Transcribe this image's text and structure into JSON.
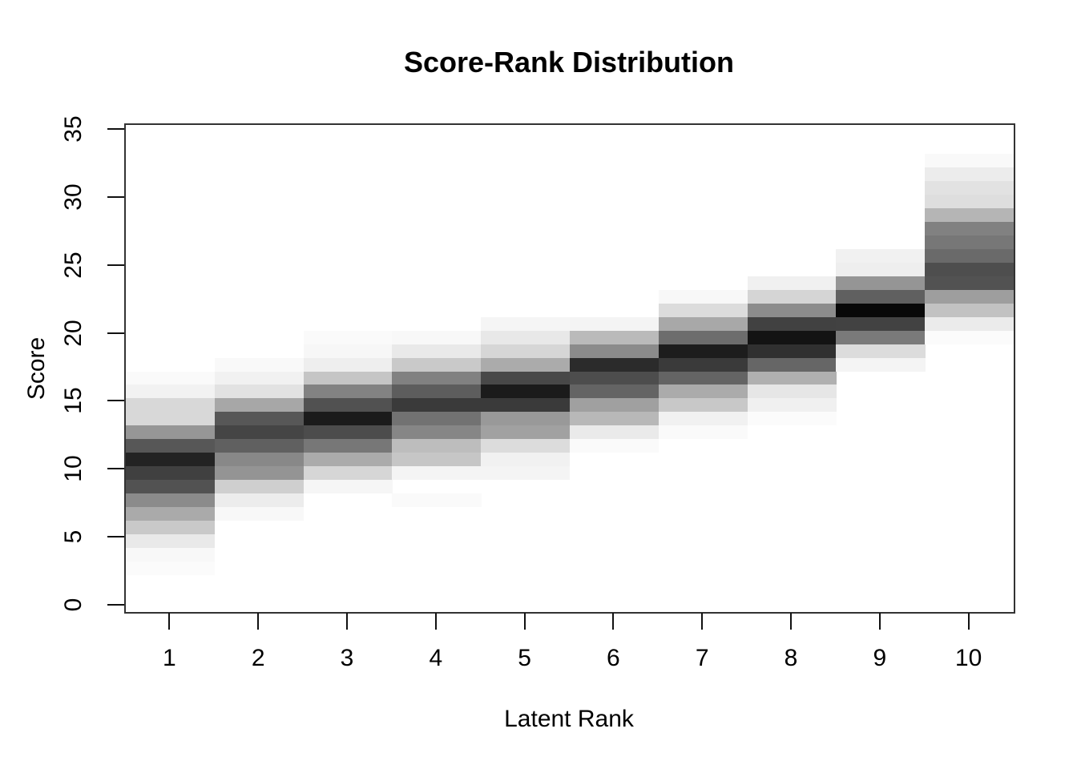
{
  "chart_data": {
    "type": "heatmap",
    "title": "Score-Rank Distribution",
    "xlabel": "Latent Rank",
    "ylabel": "Score",
    "x_ticks": [
      "1",
      "2",
      "3",
      "4",
      "5",
      "6",
      "7",
      "8",
      "9",
      "10"
    ],
    "y_ticks": [
      "0",
      "5",
      "10",
      "15",
      "20",
      "25",
      "30",
      "35"
    ],
    "x_tick_values": [
      1,
      2,
      3,
      4,
      5,
      6,
      7,
      8,
      9,
      10
    ],
    "y_tick_values": [
      0,
      5,
      10,
      15,
      20,
      25,
      30,
      35
    ],
    "xlim": [
      0.5,
      10.5
    ],
    "ylim": [
      -0.5,
      35.5
    ],
    "grid": false,
    "legend_position": "none",
    "colormap": "grayscale: white = low density, black = high density",
    "cell_size": {
      "width_ranks": 1,
      "height_scores": 1
    },
    "columns": [
      {
        "rank": 1,
        "cells": [
          {
            "score": 17,
            "color": "#fafafa"
          },
          {
            "score": 16,
            "color": "#f2f2f2"
          },
          {
            "score": 15,
            "color": "#d8d8d8"
          },
          {
            "score": 14,
            "color": "#d8d8d8"
          },
          {
            "score": 13,
            "color": "#969696"
          },
          {
            "score": 12,
            "color": "#575757"
          },
          {
            "score": 11,
            "color": "#232323"
          },
          {
            "score": 10,
            "color": "#404040"
          },
          {
            "score": 9,
            "color": "#525252"
          },
          {
            "score": 8,
            "color": "#8b8b8b"
          },
          {
            "score": 7,
            "color": "#aaaaaa"
          },
          {
            "score": 6,
            "color": "#c9c9c9"
          },
          {
            "score": 5,
            "color": "#e9e9e9"
          },
          {
            "score": 4,
            "color": "#f8f8f8"
          },
          {
            "score": 3,
            "color": "#fbfbfb"
          }
        ]
      },
      {
        "rank": 2,
        "cells": [
          {
            "score": 18,
            "color": "#f9f9f9"
          },
          {
            "score": 17,
            "color": "#f1f1f1"
          },
          {
            "score": 16,
            "color": "#e2e2e2"
          },
          {
            "score": 15,
            "color": "#a7a7a7"
          },
          {
            "score": 14,
            "color": "#575757"
          },
          {
            "score": 13,
            "color": "#454545"
          },
          {
            "score": 12,
            "color": "#606060"
          },
          {
            "score": 11,
            "color": "#888888"
          },
          {
            "score": 10,
            "color": "#949494"
          },
          {
            "score": 9,
            "color": "#cfcfcf"
          },
          {
            "score": 8,
            "color": "#ececec"
          },
          {
            "score": 7,
            "color": "#f8f8f8"
          }
        ]
      },
      {
        "rank": 3,
        "cells": [
          {
            "score": 20,
            "color": "#fafafa"
          },
          {
            "score": 19,
            "color": "#f7f7f7"
          },
          {
            "score": 18,
            "color": "#eeeeee"
          },
          {
            "score": 17,
            "color": "#c5c5c5"
          },
          {
            "score": 16,
            "color": "#828282"
          },
          {
            "score": 15,
            "color": "#515151"
          },
          {
            "score": 14,
            "color": "#1b1b1b"
          },
          {
            "score": 13,
            "color": "#4c4c4c"
          },
          {
            "score": 12,
            "color": "#777777"
          },
          {
            "score": 11,
            "color": "#ababab"
          },
          {
            "score": 10,
            "color": "#d6d6d6"
          },
          {
            "score": 9,
            "color": "#f6f6f6"
          }
        ]
      },
      {
        "rank": 4,
        "cells": [
          {
            "score": 20,
            "color": "#f8f8f8"
          },
          {
            "score": 19,
            "color": "#e9e9e9"
          },
          {
            "score": 18,
            "color": "#c9c9c9"
          },
          {
            "score": 17,
            "color": "#818181"
          },
          {
            "score": 16,
            "color": "#5d5d5d"
          },
          {
            "score": 15,
            "color": "#3a3a3a"
          },
          {
            "score": 14,
            "color": "#727272"
          },
          {
            "score": 13,
            "color": "#868686"
          },
          {
            "score": 12,
            "color": "#bdbdbd"
          },
          {
            "score": 11,
            "color": "#c6c6c6"
          },
          {
            "score": 10,
            "color": "#f4f4f4"
          },
          {
            "score": 8,
            "color": "#fafafa"
          }
        ]
      },
      {
        "rank": 5,
        "cells": [
          {
            "score": 21,
            "color": "#f5f5f5"
          },
          {
            "score": 20,
            "color": "#e8e8e8"
          },
          {
            "score": 19,
            "color": "#d6d6d6"
          },
          {
            "score": 18,
            "color": "#ababab"
          },
          {
            "score": 17,
            "color": "#484848"
          },
          {
            "score": 16,
            "color": "#1b1b1b"
          },
          {
            "score": 15,
            "color": "#3a3a3a"
          },
          {
            "score": 14,
            "color": "#999999"
          },
          {
            "score": 13,
            "color": "#a1a1a1"
          },
          {
            "score": 12,
            "color": "#dcdcdc"
          },
          {
            "score": 11,
            "color": "#f1f1f1"
          },
          {
            "score": 10,
            "color": "#f4f4f4"
          }
        ]
      },
      {
        "rank": 6,
        "cells": [
          {
            "score": 21,
            "color": "#f4f4f4"
          },
          {
            "score": 20,
            "color": "#bababa"
          },
          {
            "score": 19,
            "color": "#8b8b8b"
          },
          {
            "score": 18,
            "color": "#2b2b2b"
          },
          {
            "score": 17,
            "color": "#4d4d4d"
          },
          {
            "score": 16,
            "color": "#646464"
          },
          {
            "score": 15,
            "color": "#a0a0a0"
          },
          {
            "score": 14,
            "color": "#b8b8b8"
          },
          {
            "score": 13,
            "color": "#eaeaea"
          },
          {
            "score": 12,
            "color": "#fafafa"
          }
        ]
      },
      {
        "rank": 7,
        "cells": [
          {
            "score": 23,
            "color": "#f8f8f8"
          },
          {
            "score": 22,
            "color": "#dcdcdc"
          },
          {
            "score": 21,
            "color": "#a8a8a8"
          },
          {
            "score": 20,
            "color": "#6d6d6d"
          },
          {
            "score": 19,
            "color": "#1d1d1d"
          },
          {
            "score": 18,
            "color": "#3a3a3a"
          },
          {
            "score": 17,
            "color": "#646464"
          },
          {
            "score": 16,
            "color": "#ababab"
          },
          {
            "score": 15,
            "color": "#c8c8c8"
          },
          {
            "score": 14,
            "color": "#f1f1f1"
          },
          {
            "score": 13,
            "color": "#fafafa"
          }
        ]
      },
      {
        "rank": 8,
        "cells": [
          {
            "score": 24,
            "color": "#f0f0f0"
          },
          {
            "score": 23,
            "color": "#d5d5d5"
          },
          {
            "score": 22,
            "color": "#8c8c8c"
          },
          {
            "score": 21,
            "color": "#414141"
          },
          {
            "score": 20,
            "color": "#131313"
          },
          {
            "score": 19,
            "color": "#303030"
          },
          {
            "score": 18,
            "color": "#666666"
          },
          {
            "score": 17,
            "color": "#b0b0b0"
          },
          {
            "score": 16,
            "color": "#e6e6e6"
          },
          {
            "score": 15,
            "color": "#f0f0f0"
          },
          {
            "score": 14,
            "color": "#fbfbfb"
          }
        ]
      },
      {
        "rank": 9,
        "cells": [
          {
            "score": 26,
            "color": "#f1f1f1"
          },
          {
            "score": 25,
            "color": "#eeeeee"
          },
          {
            "score": 24,
            "color": "#959595"
          },
          {
            "score": 23,
            "color": "#606060"
          },
          {
            "score": 22,
            "color": "#080808"
          },
          {
            "score": 21,
            "color": "#424242"
          },
          {
            "score": 20,
            "color": "#7a7a7a"
          },
          {
            "score": 19,
            "color": "#dcdcdc"
          },
          {
            "score": 18,
            "color": "#f4f4f4"
          }
        ]
      },
      {
        "rank": 10,
        "cells": [
          {
            "score": 33,
            "color": "#f9f9f9"
          },
          {
            "score": 32,
            "color": "#ececec"
          },
          {
            "score": 31,
            "color": "#e2e2e2"
          },
          {
            "score": 30,
            "color": "#dedede"
          },
          {
            "score": 29,
            "color": "#b5b5b5"
          },
          {
            "score": 28,
            "color": "#818181"
          },
          {
            "score": 27,
            "color": "#777777"
          },
          {
            "score": 26,
            "color": "#6a6a6a"
          },
          {
            "score": 25,
            "color": "#4e4e4e"
          },
          {
            "score": 24,
            "color": "#525252"
          },
          {
            "score": 23,
            "color": "#9e9e9e"
          },
          {
            "score": 22,
            "color": "#c2c2c2"
          },
          {
            "score": 21,
            "color": "#ebebeb"
          },
          {
            "score": 20,
            "color": "#fbfbfb"
          }
        ]
      }
    ]
  }
}
